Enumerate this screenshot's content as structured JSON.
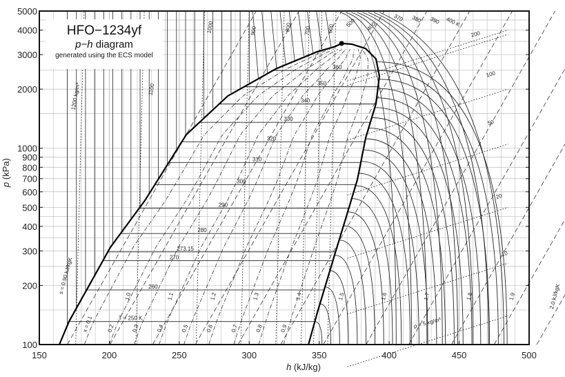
{
  "chart_data": {
    "type": "line",
    "title": "HFO−1234yf",
    "subtitle_italic": "p−h",
    "subtitle_rest": " diagram",
    "note": "generated using the ECS model",
    "xlabel_italic": "h",
    "xlabel_rest": " (kJ/kg)",
    "ylabel_italic": "p",
    "ylabel_rest": " (kPa)",
    "xlim": [
      150,
      500
    ],
    "ylim": [
      100,
      5000
    ],
    "yscale": "log",
    "x_ticks": [
      "150",
      "200",
      "250",
      "300",
      "350",
      "400",
      "450",
      "500"
    ],
    "y_ticks": [
      {
        "v": 100,
        "t": "100"
      },
      {
        "v": 200,
        "t": "200"
      },
      {
        "v": 300,
        "t": "300"
      },
      {
        "v": 400,
        "t": "400"
      },
      {
        "v": 500,
        "t": "500"
      },
      {
        "v": 600,
        "t": "600"
      },
      {
        "v": 700,
        "t": "700"
      },
      {
        "v": 800,
        "t": "800"
      },
      {
        "v": 900,
        "t": "900"
      },
      {
        "v": 1000,
        "t": "1000"
      },
      {
        "v": 2000,
        "t": "2000"
      },
      {
        "v": 3000,
        "t": "3000"
      },
      {
        "v": 4000,
        "t": "4000"
      },
      {
        "v": 5000,
        "t": "5000"
      }
    ],
    "grid": true,
    "critical_point": {
      "h": 366,
      "p": 3420
    },
    "saturated_liquid": [
      [
        164.3,
        100
      ],
      [
        171.2,
        131
      ],
      [
        200.8,
        313
      ],
      [
        225.4,
        541
      ],
      [
        255.0,
        1172
      ],
      [
        284.6,
        1845
      ],
      [
        319.1,
        2539
      ],
      [
        348.7,
        3105
      ],
      [
        361,
        3290
      ],
      [
        366,
        3420
      ]
    ],
    "saturated_vapor": [
      [
        366,
        3420
      ],
      [
        373.3,
        3390
      ],
      [
        383.2,
        3220
      ],
      [
        390.6,
        2850
      ],
      [
        393,
        2330
      ],
      [
        390.6,
        1690
      ],
      [
        383.2,
        1130
      ],
      [
        377.3,
        693
      ],
      [
        369.9,
        462
      ],
      [
        362,
        302
      ],
      [
        348.7,
        146
      ],
      [
        342.3,
        100
      ]
    ],
    "isotherms_two_phase": [
      {
        "T": 250,
        "label": "T = 250 K"
      },
      {
        "T": 260,
        "label": "260"
      },
      {
        "T": 270,
        "label": "270"
      },
      {
        "T": 273.15,
        "label": "273.15"
      },
      {
        "T": 280,
        "label": "280"
      },
      {
        "T": 290,
        "label": "290"
      },
      {
        "T": 300,
        "label": "300"
      },
      {
        "T": 310,
        "label": "310"
      },
      {
        "T": 320,
        "label": "320"
      },
      {
        "T": 330,
        "label": "330"
      },
      {
        "T": 340,
        "label": "340"
      },
      {
        "T": 350,
        "label": "350"
      },
      {
        "T": 360,
        "label": "360"
      }
    ],
    "isotherms_superheated": [
      {
        "T": 370,
        "label": "370"
      },
      {
        "T": 380,
        "label": "380"
      },
      {
        "T": 390,
        "label": "390"
      },
      {
        "T": 400,
        "label": "400 K"
      }
    ],
    "quality_lines": [
      {
        "x": 0.1,
        "label": "x = 0.1"
      },
      {
        "x": 0.2,
        "label": "0.2"
      },
      {
        "x": 0.3,
        "label": "0.3"
      },
      {
        "x": 0.4,
        "label": "0.4"
      },
      {
        "x": 0.5,
        "label": "0.5"
      },
      {
        "x": 0.6,
        "label": "0.6"
      },
      {
        "x": 0.7,
        "label": "0.7"
      },
      {
        "x": 0.8,
        "label": "0.8"
      },
      {
        "x": 0.9,
        "label": "0.9"
      }
    ],
    "isentropes": [
      {
        "s": 0.9,
        "label": "s = 0.90 kJ/kgK"
      },
      {
        "s": 1.0,
        "label": "1.0"
      },
      {
        "s": 1.1,
        "label": "1.1"
      },
      {
        "s": 1.2,
        "label": "1.2"
      },
      {
        "s": 1.3,
        "label": "1.3"
      },
      {
        "s": 1.4,
        "label": "1.4"
      },
      {
        "s": 1.5,
        "label": "1.5"
      },
      {
        "s": 1.6,
        "label": "1.6"
      },
      {
        "s": 1.7,
        "label": "1.7"
      },
      {
        "s": 1.8,
        "label": "1.8"
      },
      {
        "s": 1.9,
        "label": "1.9"
      },
      {
        "s": 2.0,
        "label": "2.0 kJ/kgK"
      }
    ],
    "isochores": [
      {
        "rho": 1200,
        "label": "1200 kg/m³"
      },
      {
        "rho": 1100,
        "label": "1100"
      },
      {
        "rho": 1000,
        "label": "1000"
      },
      {
        "rho": 900,
        "label": "900"
      },
      {
        "rho": 800,
        "label": "800"
      },
      {
        "rho": 700,
        "label": "700"
      },
      {
        "rho": 600,
        "label": "600"
      },
      {
        "rho": 500,
        "label": "500"
      },
      {
        "rho": 400,
        "label": "400"
      },
      {
        "rho": 200,
        "label": "200"
      },
      {
        "rho": 100,
        "label": "100"
      },
      {
        "rho": 50,
        "label": "50"
      },
      {
        "rho": 20,
        "label": "20"
      },
      {
        "rho": 10,
        "label": "10"
      },
      {
        "rho": 5,
        "label": "ρ = 5 kg/m³"
      }
    ]
  }
}
